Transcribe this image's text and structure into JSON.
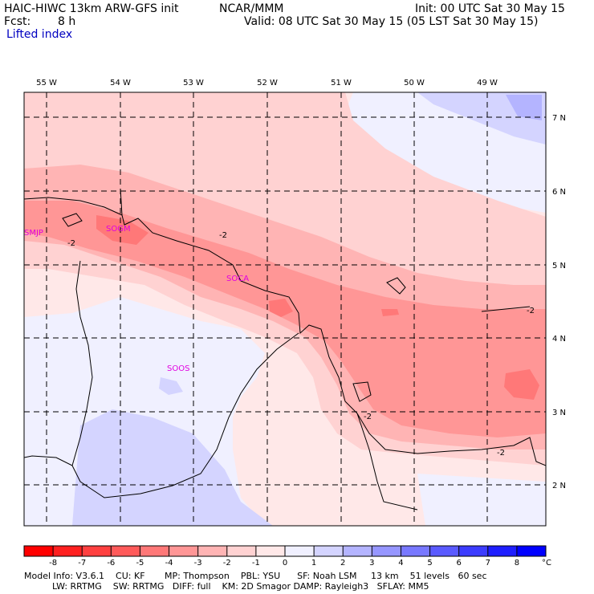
{
  "header": {
    "model_title": "HAIC-HIWC 13km ARW-GFS init",
    "org": "NCAR/MMM",
    "init": "Init: 00 UTC Sat 30 May 15",
    "fcst_label": "Fcst:",
    "fcst_value": "8 h",
    "valid": "Valid: 08 UTC Sat 30 May 15 (05 LST Sat 30 May 15)",
    "field": "Lifted index"
  },
  "map": {
    "lon_labels": [
      "55 W",
      "54 W",
      "53 W",
      "52 W",
      "51 W",
      "50 W",
      "49 W"
    ],
    "lat_labels": [
      "7 N",
      "6 N",
      "5 N",
      "4 N",
      "3 N",
      "2 N"
    ],
    "stations": [
      "SMJP",
      "SOGM",
      "SOCA",
      "SOOS"
    ],
    "contour_labels": [
      "-2",
      "-2",
      "-2",
      "-2",
      "-2"
    ]
  },
  "legend": {
    "ticks": [
      "-8",
      "-7",
      "-6",
      "-5",
      "-4",
      "-3",
      "-2",
      "-1",
      "0",
      "1",
      "2",
      "3",
      "4",
      "5",
      "6",
      "7",
      "8"
    ],
    "unit": "°C",
    "colors": [
      "#ff0000",
      "#ff2020",
      "#ff4040",
      "#ff5a5a",
      "#ff7878",
      "#ff9696",
      "#ffb4b4",
      "#ffd2d2",
      "#ffe8e8",
      "#f0f0ff",
      "#d4d4ff",
      "#b4b4ff",
      "#9696ff",
      "#7878ff",
      "#5a5aff",
      "#3c3cff",
      "#1e1eff",
      "#0000ff"
    ]
  },
  "footer": {
    "line1": "Model Info: V3.6.1    CU: KF       MP: Thompson    PBL: YSU      SF: Noah LSM     13 km    51 levels   60 sec",
    "line2": "          LW: RRTMG    SW: RRTMG   DIFF: full    KM: 2D Smagor DAMP: Rayleigh3   SFLAY: MM5"
  }
}
